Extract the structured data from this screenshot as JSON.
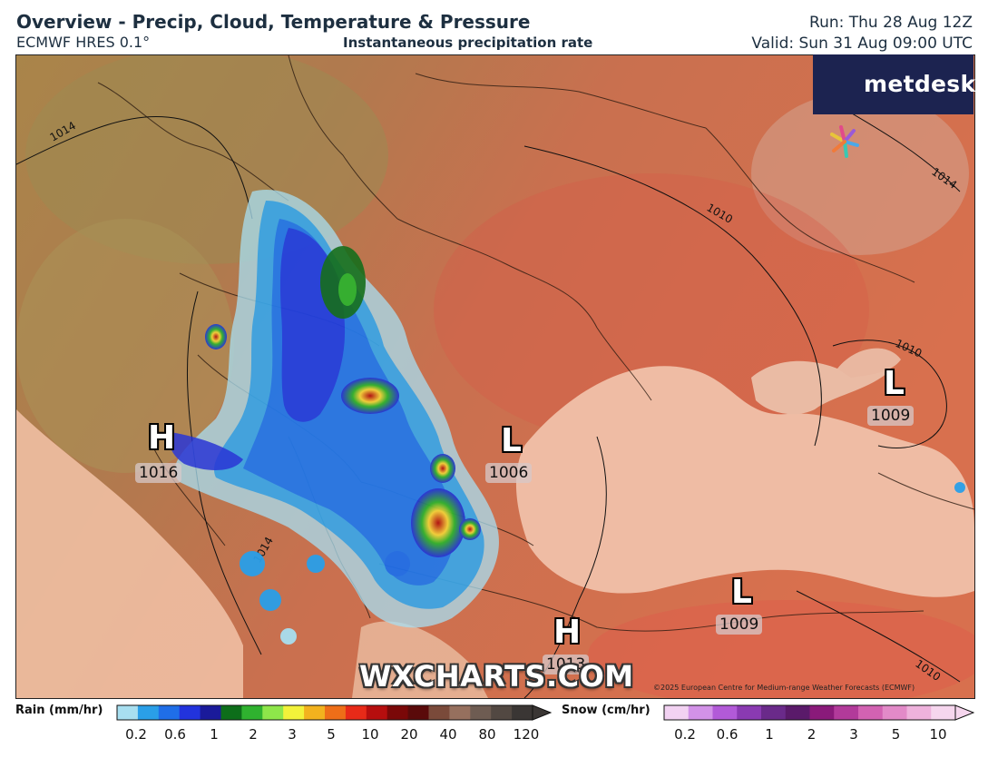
{
  "header": {
    "title": "Overview - Precip, Cloud, Temperature & Pressure",
    "model": "ECMWF HRES 0.1°",
    "subtitle": "Instantaneous precipitation rate",
    "run": "Run: Thu 28 Aug 12Z",
    "valid": "Valid: Sun 31 Aug 09:00 UTC"
  },
  "logo": {
    "text": "metdesk"
  },
  "pressure_systems": [
    {
      "type": "H",
      "value": "1016"
    },
    {
      "type": "L",
      "value": "1006"
    },
    {
      "type": "L",
      "value": "1009"
    },
    {
      "type": "L",
      "value": "1009"
    },
    {
      "type": "H",
      "value": "1013"
    }
  ],
  "isobar_labels": [
    "1014",
    "1010",
    "1014",
    "1010",
    "1010",
    "1014"
  ],
  "watermark": "WXCHARTS.COM",
  "copyright": "©2025 European Centre for Medium-range Weather Forecasts (ECMWF)",
  "legend": {
    "rain": {
      "title": "Rain (mm/hr)",
      "ticks": [
        "0.2",
        "0.6",
        "1",
        "2",
        "3",
        "5",
        "10",
        "20",
        "40",
        "80",
        "120"
      ],
      "colors": [
        "#a8dff0",
        "#2a9fe8",
        "#1f6ee8",
        "#2233dd",
        "#1a1a9a",
        "#0d6e1a",
        "#2fb22f",
        "#8ee64a",
        "#f2f23a",
        "#f2b21e",
        "#ee6e18",
        "#e82a18",
        "#b60e0e",
        "#7a0808",
        "#5a0a0a",
        "#7a4a3a",
        "#96705e",
        "#6e5c52",
        "#524842",
        "#3a3634"
      ]
    },
    "snow": {
      "title": "Snow (cm/hr)",
      "ticks": [
        "0.2",
        "0.6",
        "1",
        "2",
        "3",
        "5",
        "10"
      ],
      "colors": [
        "#f2d2f2",
        "#d292e8",
        "#b25ad8",
        "#8a3ab2",
        "#6a2a8a",
        "#5a1a6a",
        "#8a1a7a",
        "#b23a9a",
        "#d262b2",
        "#e28ac8",
        "#eeb2dc",
        "#f6d6ee"
      ]
    }
  }
}
